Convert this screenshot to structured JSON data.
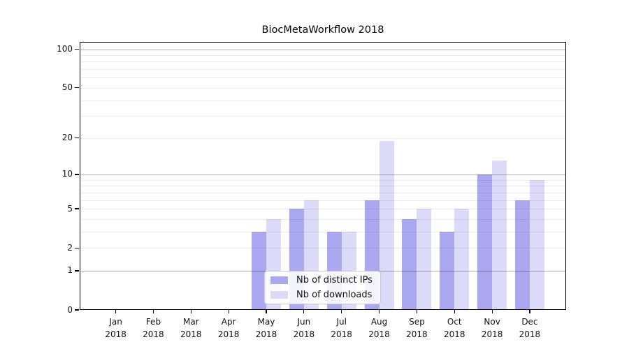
{
  "title": "BiocMetaWorkflow 2018",
  "chart_data": {
    "type": "bar",
    "title": "BiocMetaWorkflow 2018",
    "months": [
      "Jan",
      "Feb",
      "Mar",
      "Apr",
      "May",
      "Jun",
      "Jul",
      "Aug",
      "Sep",
      "Oct",
      "Nov",
      "Dec"
    ],
    "year_label": "2018",
    "series": [
      {
        "name": "Nb of distinct IPs",
        "color": "#a9a8f0",
        "values": [
          0,
          0,
          0,
          0,
          3,
          5,
          3,
          6,
          4,
          3,
          10,
          6
        ]
      },
      {
        "name": "Nb of downloads",
        "color": "#dbdaf8",
        "values": [
          0,
          0,
          0,
          0,
          4,
          6,
          3,
          19,
          5,
          5,
          13,
          9
        ]
      }
    ],
    "y_ticks": [
      0,
      1,
      2,
      5,
      10,
      20,
      50,
      100
    ],
    "y_major_gridlines": [
      1,
      10,
      100
    ],
    "y_minor_gridlines": [
      2,
      3,
      4,
      5,
      6,
      7,
      8,
      9,
      20,
      30,
      40,
      50,
      60,
      70,
      80,
      90
    ],
    "yscale": "log10(1+x)",
    "ylim": [
      0,
      113
    ],
    "xlabel": "",
    "ylabel": "",
    "grid": "on",
    "legend_position": "inside-bottom-center"
  },
  "colors": {
    "background": "#ffffff",
    "axis": "#000000",
    "tick_label": "#111111",
    "major_grid": "rgba(0,0,0,0.30)",
    "minor_grid": "rgba(0,0,0,0.075)",
    "legend_border": "#cccccc",
    "legend_background": "rgba(255,255,255,0.87)"
  }
}
